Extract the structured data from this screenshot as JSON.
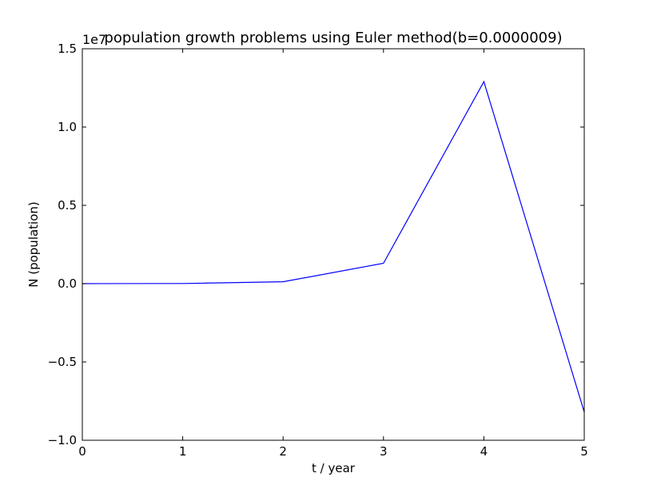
{
  "chart_data": {
    "type": "line",
    "title": "population growth problems using Euler method(b=0.0000009)",
    "xlabel": "t / year",
    "ylabel": "N (population)",
    "offset_label": "1e7",
    "xlim": [
      0,
      5
    ],
    "ylim": [
      -1.0,
      1.5
    ],
    "y_scale_multiplier": 10000000,
    "x_ticks": [
      0,
      1,
      2,
      3,
      4,
      5
    ],
    "x_tick_labels": [
      "0",
      "1",
      "2",
      "3",
      "4",
      "5"
    ],
    "y_ticks": [
      -1.0,
      -0.5,
      0.0,
      0.5,
      1.0,
      1.5
    ],
    "y_tick_labels": [
      "−1.0",
      "−0.5",
      "0.0",
      "0.5",
      "1.0",
      "1.5"
    ],
    "grid": false,
    "legend": "none",
    "series": [
      {
        "color": "#0000ff",
        "x": [
          0,
          1,
          2,
          3,
          4,
          5
        ],
        "y": [
          0.0,
          0.001,
          0.012,
          0.13,
          1.29,
          -0.82
        ]
      }
    ]
  }
}
